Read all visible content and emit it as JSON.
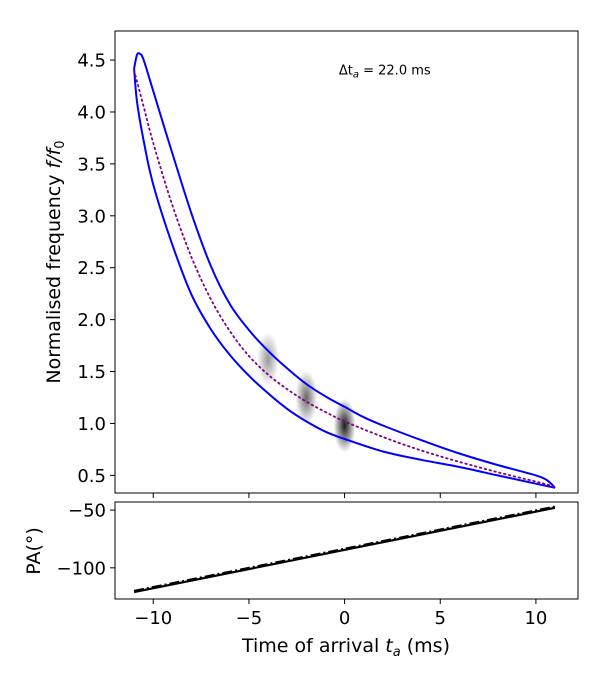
{
  "chart_data": [
    {
      "type": "line",
      "panel": "top",
      "xlabel": "Time of arrival t_a (ms)",
      "ylabel_main": "Normalised frequency ",
      "ylabel_math": "f/f",
      "ylabel_sub": "0",
      "xlim": [
        -12,
        12.2
      ],
      "ylim": [
        0.33,
        4.78
      ],
      "yticks": [
        0.5,
        1.0,
        1.5,
        2.0,
        2.5,
        3.0,
        3.5,
        4.0,
        4.5
      ],
      "ytick_labels": [
        "0.5",
        "1.0",
        "1.5",
        "2.0",
        "2.5",
        "3.0",
        "3.5",
        "4.0",
        "4.5"
      ],
      "xticks": [
        -10,
        -5,
        0,
        5,
        10
      ],
      "annotation_prefix": "Δt",
      "annotation_sub": "a",
      "annotation_suffix": " = 22.0 ms",
      "annotation_pos": [
        -0.3,
        4.4
      ],
      "upper_curve": {
        "name": "envelope-upper",
        "color": "#0000ff",
        "style": "solid",
        "x": [
          -11.0,
          -10.85,
          -10.7,
          -10.5,
          -10.0,
          -9.0,
          -8.0,
          -7.0,
          -6.0,
          -5.0,
          -4.0,
          -3.0,
          -2.0,
          -1.0,
          0.0,
          1.0,
          2.0,
          4.0,
          6.0,
          8.0,
          10.0,
          10.6,
          11.0
        ],
        "y": [
          4.42,
          4.55,
          4.56,
          4.5,
          4.2,
          3.6,
          3.02,
          2.52,
          2.15,
          1.9,
          1.7,
          1.53,
          1.38,
          1.26,
          1.16,
          1.06,
          0.98,
          0.84,
          0.71,
          0.6,
          0.5,
          0.45,
          0.38
        ]
      },
      "lower_curve": {
        "name": "envelope-lower",
        "color": "#0000ff",
        "style": "solid",
        "x": [
          11.0,
          10.0,
          8.0,
          6.0,
          4.0,
          2.0,
          0.0,
          -1.0,
          -2.0,
          -3.0,
          -4.0,
          -5.0,
          -6.0,
          -7.0,
          -8.0,
          -9.0,
          -10.0,
          -10.5,
          -10.85,
          -11.0
        ],
        "y": [
          0.38,
          0.42,
          0.5,
          0.58,
          0.65,
          0.73,
          0.85,
          0.92,
          1.02,
          1.14,
          1.29,
          1.46,
          1.66,
          1.91,
          2.24,
          2.72,
          3.3,
          3.72,
          4.1,
          4.42
        ]
      },
      "center_curve": {
        "name": "drift-center",
        "color": "#800080",
        "style": "dotted",
        "x": [
          -11.0,
          -10.5,
          -10.0,
          -9.0,
          -8.0,
          -7.0,
          -6.0,
          -5.0,
          -4.0,
          -3.0,
          -2.0,
          -1.0,
          0.0,
          2.0,
          4.0,
          6.0,
          8.0,
          10.0,
          11.0
        ],
        "y": [
          4.4,
          4.05,
          3.7,
          3.1,
          2.6,
          2.2,
          1.89,
          1.65,
          1.47,
          1.33,
          1.21,
          1.11,
          1.02,
          0.87,
          0.74,
          0.63,
          0.53,
          0.44,
          0.39
        ]
      },
      "bursts": [
        {
          "t": -4.0,
          "f": 1.62,
          "intensity": 0.4
        },
        {
          "t": -2.0,
          "f": 1.25,
          "intensity": 0.6
        },
        {
          "t": 0.0,
          "f": 0.98,
          "intensity": 0.9
        }
      ]
    },
    {
      "type": "line",
      "panel": "bottom",
      "ylabel": "PA(°)",
      "xlabel_main": "Time of arrival ",
      "xlabel_math": "t",
      "xlabel_sub": "a",
      "xlabel_suffix": " (ms)",
      "xlim": [
        -12,
        12.2
      ],
      "ylim": [
        -127,
        -43
      ],
      "yticks": [
        -100,
        -50
      ],
      "ytick_labels": [
        "−100",
        "−50"
      ],
      "xticks": [
        -10,
        -5,
        0,
        5,
        10
      ],
      "xtick_labels": [
        "−10",
        "−5",
        "0",
        "5",
        "10"
      ],
      "series": [
        {
          "name": "pa-solid",
          "style": "solid",
          "x": [
            -11,
            11
          ],
          "y": [
            -121,
            -48
          ]
        },
        {
          "name": "pa-dashdot",
          "style": "dashdot",
          "x": [
            -11,
            11
          ],
          "y": [
            -120,
            -47
          ]
        }
      ]
    }
  ]
}
